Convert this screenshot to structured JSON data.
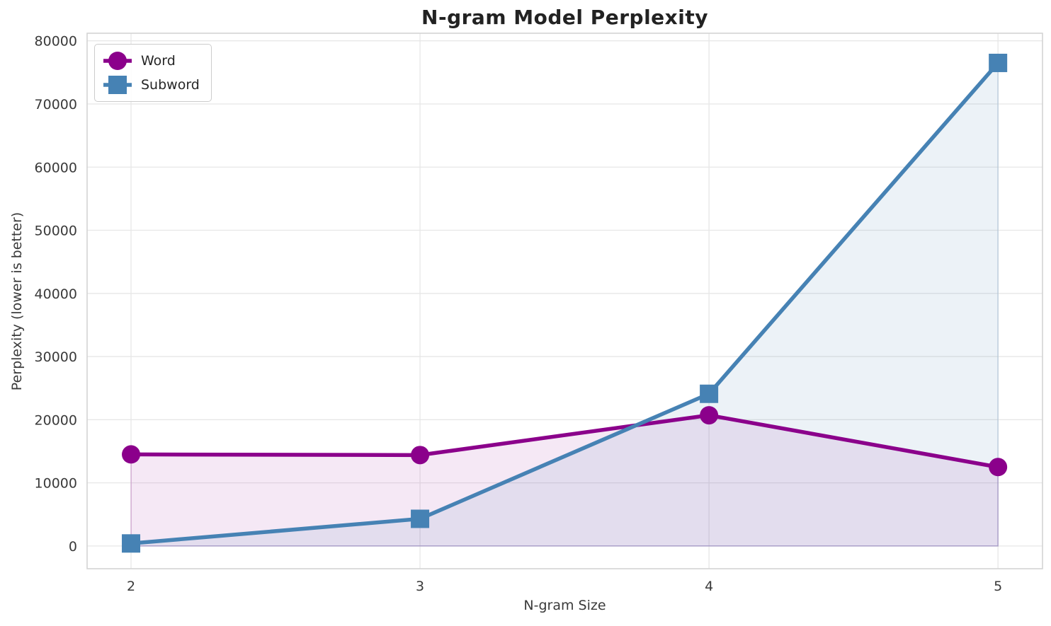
{
  "chart_data": {
    "type": "line",
    "title": "N-gram Model Perplexity",
    "xlabel": "N-gram Size",
    "ylabel": "Perplexity (lower is better)",
    "x": [
      2,
      3,
      4,
      5
    ],
    "x_tick_labels": [
      "2",
      "3",
      "4",
      "5"
    ],
    "y_ticks": [
      0,
      10000,
      20000,
      30000,
      40000,
      50000,
      60000,
      70000,
      80000
    ],
    "y_tick_labels": [
      "0",
      "10000",
      "20000",
      "30000",
      "40000",
      "50000",
      "60000",
      "70000",
      "80000"
    ],
    "xlim": [
      1.848,
      5.154
    ],
    "ylim": [
      -3600,
      81200
    ],
    "grid": true,
    "legend_position": "upper-left",
    "fill_baseline": 0,
    "series": [
      {
        "name": "Word",
        "marker": "circle",
        "color": "#8B008B",
        "fill_alpha": 0.09,
        "values": [
          14500,
          14400,
          20700,
          12500
        ]
      },
      {
        "name": "Subword",
        "marker": "square",
        "color": "#4682B4",
        "fill_alpha": 0.1,
        "values": [
          400,
          4300,
          24100,
          76500
        ]
      }
    ],
    "style": {
      "grid_color": "#e7e7e7",
      "spine_color": "#d4d4d4",
      "tick_label_color": "#3a3a3a",
      "title_color": "#222222",
      "line_width": 5.5,
      "marker_size": 13
    }
  }
}
